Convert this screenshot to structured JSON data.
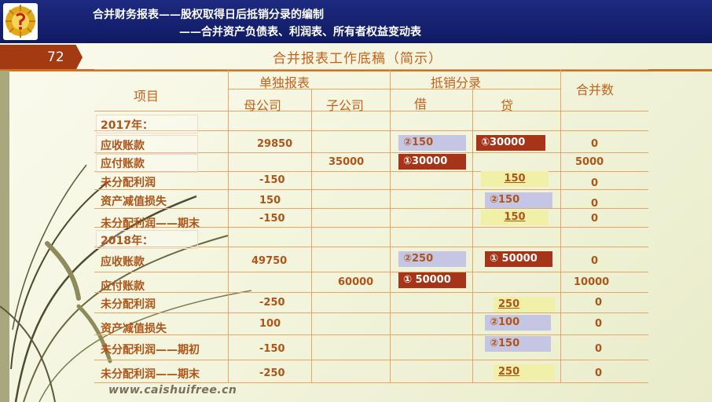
{
  "header": {
    "line1": "合并财务报表——股权取得日后抵销分录的编制",
    "line2": "——合并资产负债表、利润表、所有者权益变动表"
  },
  "page_number": "72",
  "sheet_title": "合并报表工作底稿（简示）",
  "columns": {
    "item": "项目",
    "separate": "单独报表",
    "parent": "母公司",
    "sub": "子公司",
    "elimination": "抵销分录",
    "debit": "借",
    "credit": "贷",
    "consolidated": "合并数"
  },
  "years": {
    "y2017": "2017年：",
    "y2018": "2018年："
  },
  "rows": [
    {
      "label": "应收账款",
      "parent": "29850",
      "sub": "",
      "debit": "②150",
      "credit": "①30000",
      "total": "0"
    },
    {
      "label": "应付账款",
      "parent": "",
      "sub": "35000",
      "debit": "①30000",
      "credit": "",
      "total": "5000"
    },
    {
      "label": "未分配利润",
      "parent": "-150",
      "sub": "",
      "debit": "",
      "credit": "150",
      "total": "0"
    },
    {
      "label": "资产减值损失",
      "parent": "150",
      "sub": "",
      "debit": "",
      "credit": "②150",
      "total": "0"
    },
    {
      "label": "未分配利润——期末",
      "parent": "-150",
      "sub": "",
      "debit": "",
      "credit": "150",
      "total": "0"
    },
    {
      "label": "应收账款",
      "parent": "49750",
      "sub": "",
      "debit": "②250",
      "credit": "① 50000",
      "total": "0"
    },
    {
      "label": "应付账款",
      "parent": "",
      "sub": "60000",
      "debit": "① 50000",
      "credit": "",
      "total": "10000"
    },
    {
      "label": "未分配利润",
      "parent": "-250",
      "sub": "",
      "debit": "",
      "credit": "250",
      "total": "0"
    },
    {
      "label": "资产减值损失",
      "parent": "100",
      "sub": "",
      "debit": "",
      "credit": "②100",
      "total": "0"
    },
    {
      "label": "未分配利润——期初",
      "parent": "-150",
      "sub": "",
      "debit": "",
      "credit": "②150",
      "total": "0"
    },
    {
      "label": "未分配利润——期末",
      "parent": "-250",
      "sub": "",
      "debit": "",
      "credit": "250",
      "total": "0"
    }
  ],
  "footer": "www.caishuifree.cn",
  "colors": {
    "header_bg": "#1d2a80",
    "accent": "#a33a12",
    "text": "#b05418",
    "lavender": "#c5c5e4",
    "yellow": "#f0f0a8"
  }
}
